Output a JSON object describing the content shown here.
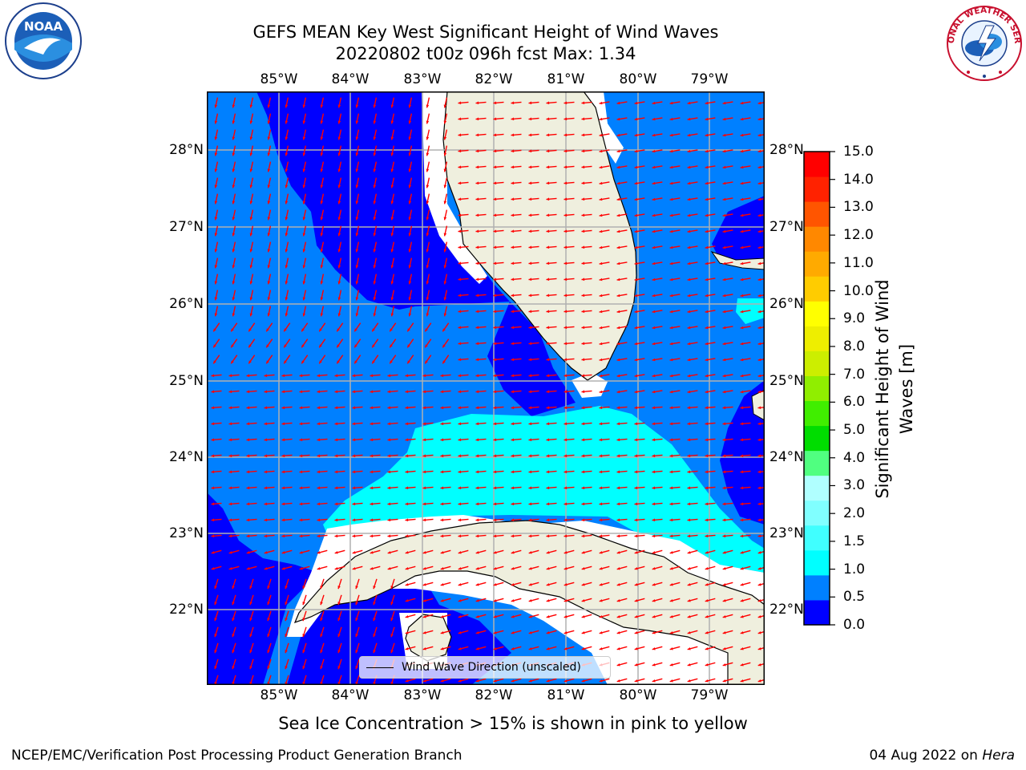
{
  "title_line1": "GEFS MEAN Key West Significant Height of Wind Waves",
  "title_line2": "20220802 t00z 096h fcst   Max: 1.34",
  "lon_labels": [
    "85°W",
    "84°W",
    "83°W",
    "82°W",
    "81°W",
    "80°W",
    "79°W"
  ],
  "lat_labels": [
    "28°N",
    "27°N",
    "26°N",
    "25°N",
    "24°N",
    "23°N",
    "22°N"
  ],
  "legend_label": "Wind Wave Direction (unscaled)",
  "colorbar": {
    "label": "Significant Height of Wind Waves [m]",
    "ticks": [
      "15.0",
      "14.0",
      "13.0",
      "12.0",
      "11.0",
      "10.0",
      "9.0",
      "8.0",
      "7.0",
      "6.0",
      "5.0",
      "4.0",
      "3.0",
      "2.0",
      "1.5",
      "1.0",
      "0.5",
      "0.0"
    ],
    "colors_bottom_to_top": [
      "#0000ff",
      "#0080ff",
      "#00ffff",
      "#40ffff",
      "#80ffff",
      "#b0ffff",
      "#50ff80",
      "#00dd00",
      "#40ee00",
      "#90ee00",
      "#ccee00",
      "#eeee00",
      "#ffff00",
      "#ffcc00",
      "#ffaa00",
      "#ff8800",
      "#ff5500",
      "#ff2200",
      "#ff0000"
    ]
  },
  "colors": {
    "ocean_low": "#0000ff",
    "ocean_mid": "#0080ff",
    "ocean_high": "#00ffff",
    "land": "#efefde",
    "arrow": "#ff0000",
    "grid": "#b0b0b0"
  },
  "footer_note": "Sea Ice Concentration > 15% is shown in pink to yellow",
  "footer_left": "NCEP/EMC/Verification Post Processing Product Generation Branch",
  "footer_right_date": "04 Aug 2022 on",
  "footer_right_host": "Hera",
  "logos": {
    "noaa": "NOAA",
    "nws": "NATIONAL WEATHER SERVICE"
  }
}
